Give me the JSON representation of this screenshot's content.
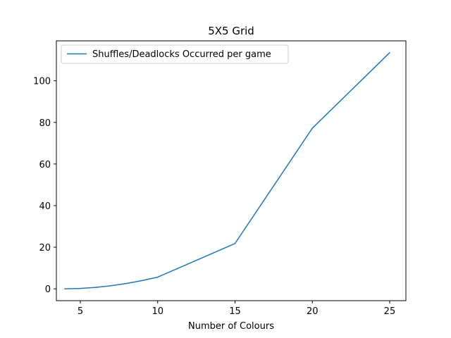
{
  "chart_data": {
    "type": "line",
    "title": "5X5 Grid",
    "xlabel": "Number of Colours",
    "ylabel": "",
    "xlim": [
      3.45,
      26.05
    ],
    "ylim": [
      -5.7,
      119.2
    ],
    "xticks": [
      5,
      10,
      15,
      20,
      25
    ],
    "yticks": [
      0,
      20,
      40,
      60,
      80,
      100
    ],
    "grid": false,
    "legend": "top-left",
    "series": [
      {
        "name": "Shuffles/Deadlocks Occurred per game",
        "color": "#1f77b4",
        "x": [
          4,
          5,
          6,
          7,
          8,
          9,
          10,
          15,
          20,
          25
        ],
        "y": [
          0,
          0.2,
          0.7,
          1.5,
          2.6,
          4.0,
          5.6,
          21.8,
          77.2,
          113.5
        ]
      }
    ]
  }
}
